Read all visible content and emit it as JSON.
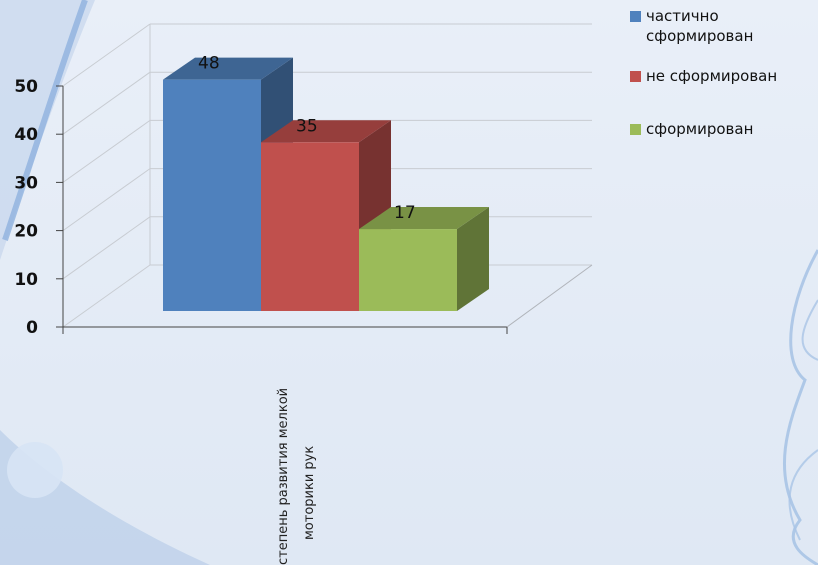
{
  "chart_data": {
    "type": "bar",
    "categories": [
      "степень развития мелкой моторики рук"
    ],
    "series": [
      {
        "name": "частично сформирован",
        "values": [
          48
        ],
        "color": "#4f81bd"
      },
      {
        "name": "не сформирован",
        "values": [
          35
        ],
        "color": "#c0504d"
      },
      {
        "name": "сформирован",
        "values": [
          17
        ],
        "color": "#9bbb59"
      }
    ],
    "ylim": [
      0,
      50
    ],
    "yticks": [
      "0",
      "10",
      "20",
      "30",
      "40",
      "50"
    ],
    "grid": true,
    "legend_position": "top-right",
    "three_d": true
  }
}
